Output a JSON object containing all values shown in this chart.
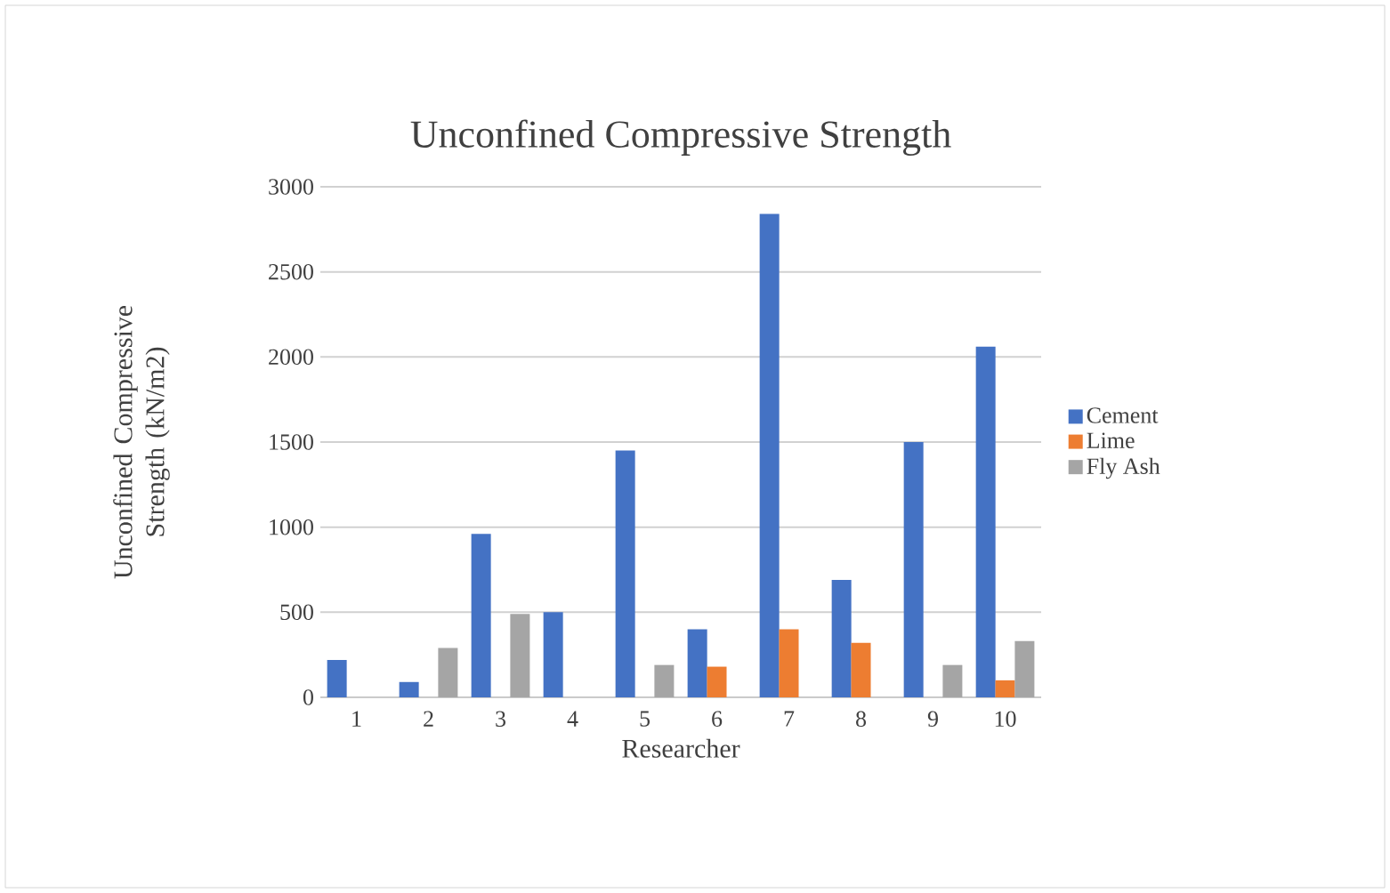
{
  "chart_data": {
    "type": "bar",
    "title": "Unconfined Compressive Strength",
    "xlabel": "Researcher",
    "ylabel": "Unconfined Compressive Strength (kN/m2)",
    "categories": [
      "1",
      "2",
      "3",
      "4",
      "5",
      "6",
      "7",
      "8",
      "9",
      "10"
    ],
    "series": [
      {
        "name": "Cement",
        "color": "#4472c4",
        "values": [
          220,
          90,
          960,
          500,
          1450,
          400,
          2840,
          690,
          1500,
          2060
        ]
      },
      {
        "name": "Lime",
        "color": "#ed7d31",
        "values": [
          null,
          null,
          null,
          null,
          null,
          180,
          400,
          320,
          null,
          100
        ]
      },
      {
        "name": "Fly Ash",
        "color": "#a5a5a5",
        "values": [
          null,
          290,
          490,
          null,
          190,
          null,
          null,
          null,
          190,
          330
        ]
      }
    ],
    "ylim": [
      0,
      3000
    ],
    "yticks": [
      0,
      500,
      1000,
      1500,
      2000,
      2500,
      3000
    ],
    "grid": "y",
    "legend": "right"
  }
}
